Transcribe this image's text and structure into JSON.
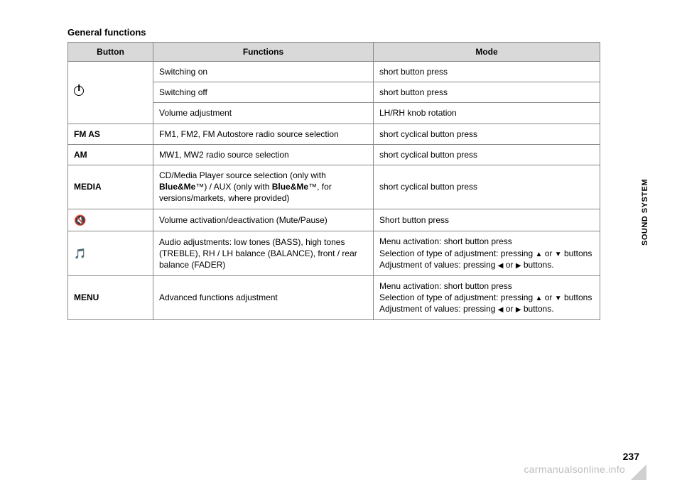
{
  "section_title": "General functions",
  "sidebar_label": "SOUND SYSTEM",
  "page_number": "237",
  "watermark": "carmanualsonline.info",
  "headers": {
    "button": "Button",
    "functions": "Functions",
    "mode": "Mode"
  },
  "rows": {
    "power_on": {
      "func": "Switching on",
      "mode": "short button press"
    },
    "power_off": {
      "func": "Switching off",
      "mode": "short button press"
    },
    "volume": {
      "func": "Volume adjustment",
      "mode": "LH/RH knob rotation"
    },
    "fmas": {
      "button": "FM AS",
      "func": "FM1, FM2, FM Autostore radio source selection",
      "mode": "short cyclical button press"
    },
    "am": {
      "button": "AM",
      "func": "MW1, MW2 radio source selection",
      "mode": "short cyclical button press"
    },
    "media": {
      "button": "MEDIA",
      "func_pre": "CD/Media Player source selection (only with ",
      "func_b1": "Blue&Me",
      "func_mid": "™) / AUX (only with ",
      "func_b2": "Blue&Me",
      "func_post": "™, for versions/markets, where provided)",
      "mode": "short cyclical button press"
    },
    "mute": {
      "func": "Volume activation/deactivation (Mute/Pause)",
      "mode": "Short button press"
    },
    "audio": {
      "func": "Audio adjustments: low tones (BASS), high tones (TREBLE), RH / LH balance (BALANCE), front / rear balance (FADER)",
      "mode_l1": "Menu activation: short button press",
      "mode_l2a": "Selection of type of adjustment: pressing ",
      "mode_l2b": " or ",
      "mode_l2c": " buttons",
      "mode_l3a": "Adjustment of values: pressing ",
      "mode_l3b": " or ",
      "mode_l3c": " buttons."
    },
    "menu": {
      "button": "MENU",
      "func": "Advanced functions adjustment",
      "mode_l1": "Menu activation: short button press",
      "mode_l2a": "Selection of type of adjustment: pressing ",
      "mode_l2b": " or ",
      "mode_l2c": " buttons",
      "mode_l3a": "Adjustment of values: pressing ",
      "mode_l3b": " or ",
      "mode_l3c": " buttons."
    }
  },
  "arrows": {
    "up": "▲",
    "down": "▼",
    "left": "◀",
    "right": "▶"
  },
  "icons": {
    "mute": "🔇",
    "audio": "🎵"
  }
}
